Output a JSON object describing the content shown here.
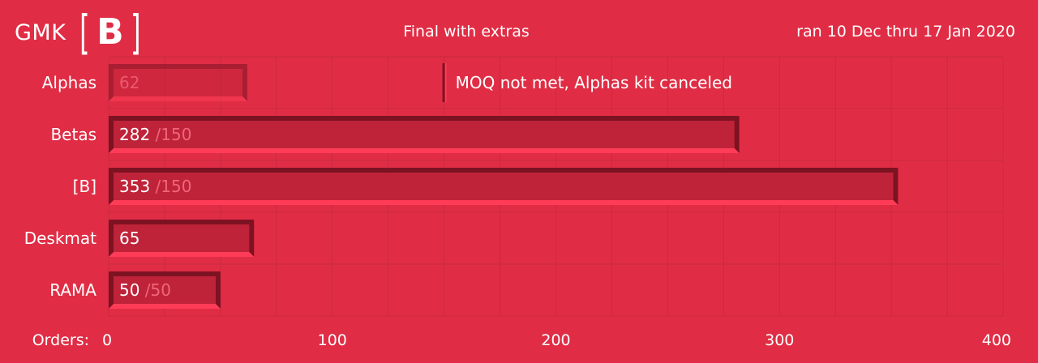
{
  "header": {
    "brand": "GMK",
    "logo_letter": "B",
    "title": "Final with extras",
    "date_range": "ran 10 Dec thru 17 Jan 2020"
  },
  "colors": {
    "background": "#e02d45",
    "bar_fill": "#bf2339",
    "bar_light": "#ff3c58",
    "bar_dark": "#7c1222",
    "grid": "#c92a40",
    "goal_text": "#f0667a",
    "canceled_text": "#ec5a6f"
  },
  "chart_data": {
    "type": "bar",
    "orientation": "horizontal",
    "title": "Final with extras",
    "xlabel": "Orders:",
    "xlim": [
      0,
      400
    ],
    "x_ticks": [
      0,
      100,
      200,
      300,
      400
    ],
    "grid": true,
    "categories": [
      "Alphas",
      "Betas",
      "[B]",
      "Deskmat",
      "RAMA"
    ],
    "values": [
      62,
      282,
      353,
      65,
      50
    ],
    "value_labels": [
      "62",
      "282",
      "353",
      "65",
      "50"
    ],
    "goals": [
      "",
      "150",
      "150",
      "",
      "50"
    ],
    "canceled": [
      true,
      false,
      false,
      false,
      false
    ],
    "annotation": {
      "category": "Alphas",
      "x": 150,
      "text": "MOQ not met, Alphas kit canceled"
    }
  }
}
